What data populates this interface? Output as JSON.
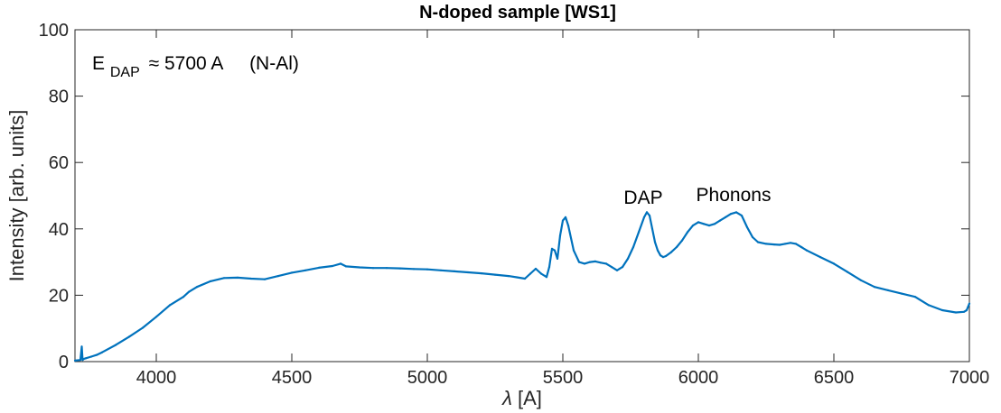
{
  "chart_data": {
    "type": "line",
    "title": "N-doped sample [WS1]",
    "xlabel_symbol": "λ",
    "xlabel_unit": "[A]",
    "ylabel": "Intensity [arb. units]",
    "xlim": [
      3700,
      7000
    ],
    "ylim": [
      0,
      100
    ],
    "xticks": [
      4000,
      4500,
      5000,
      5500,
      6000,
      6500,
      7000
    ],
    "xtick_labels": [
      "4000",
      "4500",
      "5000",
      "5500",
      "6000",
      "6500",
      "7000"
    ],
    "yticks": [
      0,
      20,
      40,
      60,
      80,
      100
    ],
    "ytick_labels": [
      "0",
      "20",
      "40",
      "60",
      "80",
      "100"
    ],
    "grid": false,
    "line_color": "#0072BD",
    "annotations": {
      "edap_letter": "E",
      "edap_subscript": "DAP",
      "edap_value": "≈ 5700 A",
      "edap_note": "(N-Al)",
      "dap": "DAP",
      "phonons": "Phonons"
    },
    "series": [
      {
        "x": [
          3700,
          3720,
          3725,
          3728,
          3732,
          3740,
          3760,
          3780,
          3800,
          3850,
          3900,
          3950,
          4000,
          4050,
          4100,
          4120,
          4150,
          4200,
          4250,
          4300,
          4350,
          4400,
          4450,
          4500,
          4550,
          4600,
          4650,
          4680,
          4700,
          4750,
          4800,
          4850,
          4900,
          4950,
          5000,
          5050,
          5100,
          5150,
          5200,
          5250,
          5300,
          5330,
          5360,
          5380,
          5400,
          5420,
          5440,
          5450,
          5460,
          5470,
          5480,
          5490,
          5500,
          5510,
          5520,
          5540,
          5560,
          5580,
          5600,
          5620,
          5640,
          5660,
          5680,
          5700,
          5720,
          5740,
          5760,
          5780,
          5800,
          5810,
          5820,
          5830,
          5840,
          5850,
          5860,
          5870,
          5880,
          5900,
          5920,
          5940,
          5960,
          5980,
          6000,
          6020,
          6040,
          6060,
          6080,
          6100,
          6120,
          6140,
          6160,
          6180,
          6200,
          6220,
          6250,
          6280,
          6300,
          6320,
          6340,
          6360,
          6380,
          6400,
          6450,
          6500,
          6550,
          6600,
          6650,
          6700,
          6750,
          6800,
          6850,
          6900,
          6950,
          6980,
          6990,
          7000
        ],
        "y": [
          0.3,
          0.5,
          4.5,
          0.5,
          0.8,
          1.0,
          1.5,
          2.0,
          2.8,
          5.0,
          7.5,
          10.2,
          13.5,
          17.0,
          19.5,
          21.0,
          22.5,
          24.2,
          25.2,
          25.3,
          25.0,
          24.8,
          25.8,
          26.8,
          27.5,
          28.3,
          28.8,
          29.5,
          28.7,
          28.4,
          28.2,
          28.2,
          28.1,
          27.9,
          27.8,
          27.5,
          27.2,
          26.9,
          26.6,
          26.2,
          25.8,
          25.4,
          25.0,
          26.5,
          28.0,
          26.5,
          25.5,
          28.5,
          34.0,
          33.5,
          31.0,
          38.0,
          42.5,
          43.5,
          41.0,
          33.5,
          30.0,
          29.5,
          30.0,
          30.2,
          29.8,
          29.5,
          28.5,
          27.5,
          28.5,
          31.0,
          34.5,
          39.0,
          43.5,
          45.0,
          44.0,
          40.0,
          36.0,
          33.5,
          32.0,
          31.5,
          31.8,
          33.0,
          34.5,
          36.5,
          39.0,
          41.0,
          42.0,
          41.5,
          41.0,
          41.5,
          42.5,
          43.5,
          44.5,
          45.0,
          44.0,
          40.5,
          37.5,
          36.0,
          35.5,
          35.3,
          35.2,
          35.5,
          35.8,
          35.5,
          34.5,
          33.5,
          31.5,
          29.5,
          27.0,
          24.5,
          22.5,
          21.5,
          20.5,
          19.5,
          17.0,
          15.5,
          14.8,
          15.0,
          15.5,
          17.5
        ]
      }
    ]
  }
}
